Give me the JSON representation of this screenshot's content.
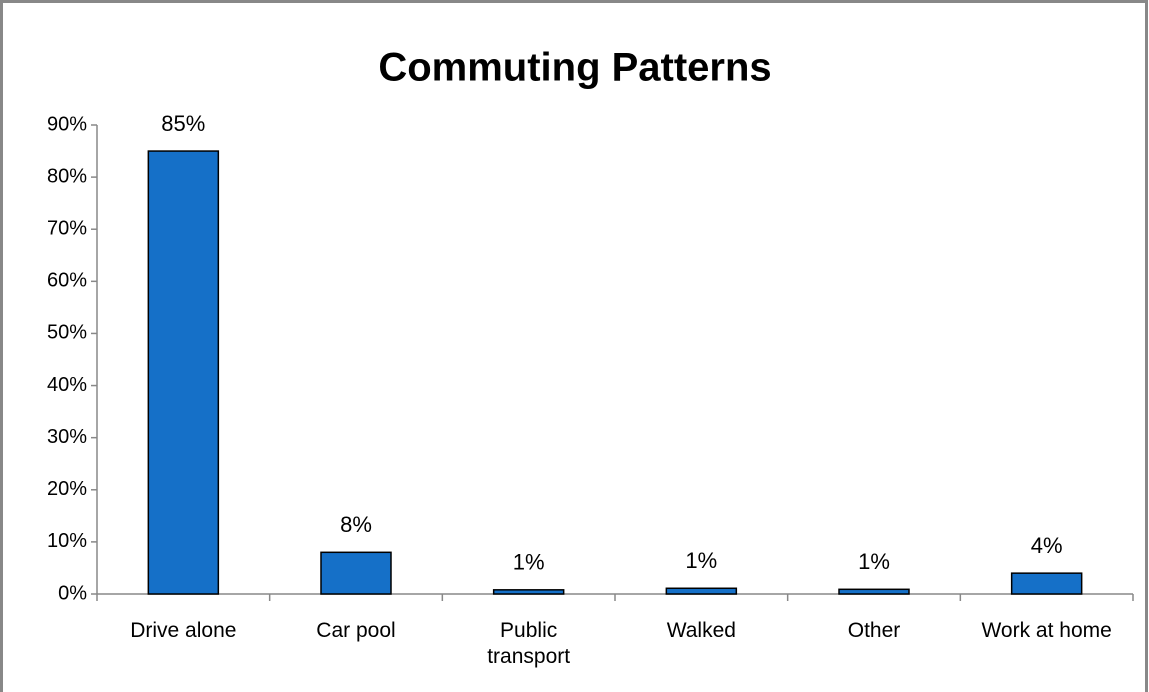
{
  "chart_data": {
    "type": "bar",
    "title": "Commuting Patterns",
    "categories": [
      "Drive alone",
      "Car pool",
      "Public transport",
      "Walked",
      "Other",
      "Work at home"
    ],
    "values": [
      85,
      8,
      0.8,
      1.1,
      0.9,
      4
    ],
    "value_labels": [
      "85%",
      "8%",
      "1%",
      "1%",
      "1%",
      "4%"
    ],
    "color": "#1570c8",
    "ylim": [
      0,
      90
    ],
    "yticks": [
      {
        "value": 0,
        "label": "0%"
      },
      {
        "value": 10,
        "label": "10%"
      },
      {
        "value": 20,
        "label": "20%"
      },
      {
        "value": 30,
        "label": "30%"
      },
      {
        "value": 40,
        "label": "40%"
      },
      {
        "value": 50,
        "label": "50%"
      },
      {
        "value": 60,
        "label": "60%"
      },
      {
        "value": 70,
        "label": "70%"
      },
      {
        "value": 80,
        "label": "80%"
      },
      {
        "value": 90,
        "label": "90%"
      }
    ],
    "grid": false
  }
}
